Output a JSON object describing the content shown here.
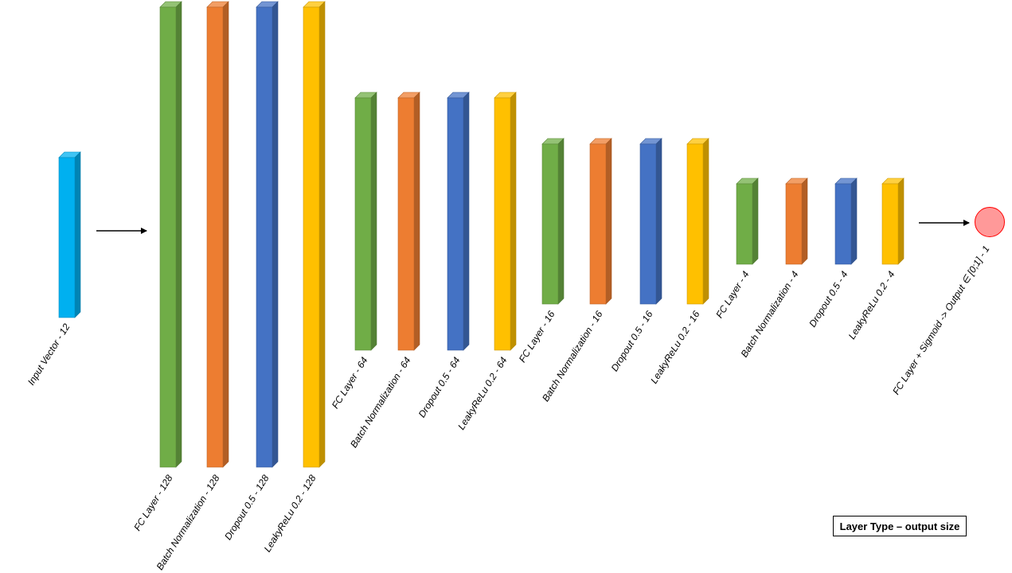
{
  "legend": {
    "text": "Layer Type – output size"
  },
  "colors": {
    "input": "#00B0F0",
    "fc": "#70AD47",
    "batchnorm": "#ED7D31",
    "dropout": "#4472C4",
    "leakyrelu": "#FFC000",
    "output_fill": "#FF9999",
    "output_stroke": "#FF0000"
  },
  "input_layer": {
    "kind": "input",
    "label": "Input Vector - 12"
  },
  "blocks": [
    {
      "layers": [
        {
          "kind": "fc",
          "label": "FC Layer - 128"
        },
        {
          "kind": "batchnorm",
          "label": "Batch Normalization - 128"
        },
        {
          "kind": "dropout",
          "label": "Dropout 0.5 - 128"
        },
        {
          "kind": "leakyrelu",
          "label": "LeakyReLu 0.2 - 128"
        }
      ]
    },
    {
      "layers": [
        {
          "kind": "fc",
          "label": "FC Layer - 64"
        },
        {
          "kind": "batchnorm",
          "label": "Batch Normalization - 64"
        },
        {
          "kind": "dropout",
          "label": "Dropout 0.5 - 64"
        },
        {
          "kind": "leakyrelu",
          "label": "LeakyReLu 0.2 - 64"
        }
      ]
    },
    {
      "layers": [
        {
          "kind": "fc",
          "label": "FC Layer - 16"
        },
        {
          "kind": "batchnorm",
          "label": "Batch Normalization - 16"
        },
        {
          "kind": "dropout",
          "label": "Dropout 0.5 - 16"
        },
        {
          "kind": "leakyrelu",
          "label": "LeakyReLu 0.2 - 16"
        }
      ]
    },
    {
      "layers": [
        {
          "kind": "fc",
          "label": "FC Layer - 4"
        },
        {
          "kind": "batchnorm",
          "label": "Batch Normalization - 4"
        },
        {
          "kind": "dropout",
          "label": "Dropout 0.5 - 4"
        },
        {
          "kind": "leakyrelu",
          "label": "LeakyReLu 0.2 - 4"
        }
      ]
    }
  ],
  "output": {
    "label": "FC Layer + Sigmoid -> Output ∈ [0;1] - 1"
  }
}
